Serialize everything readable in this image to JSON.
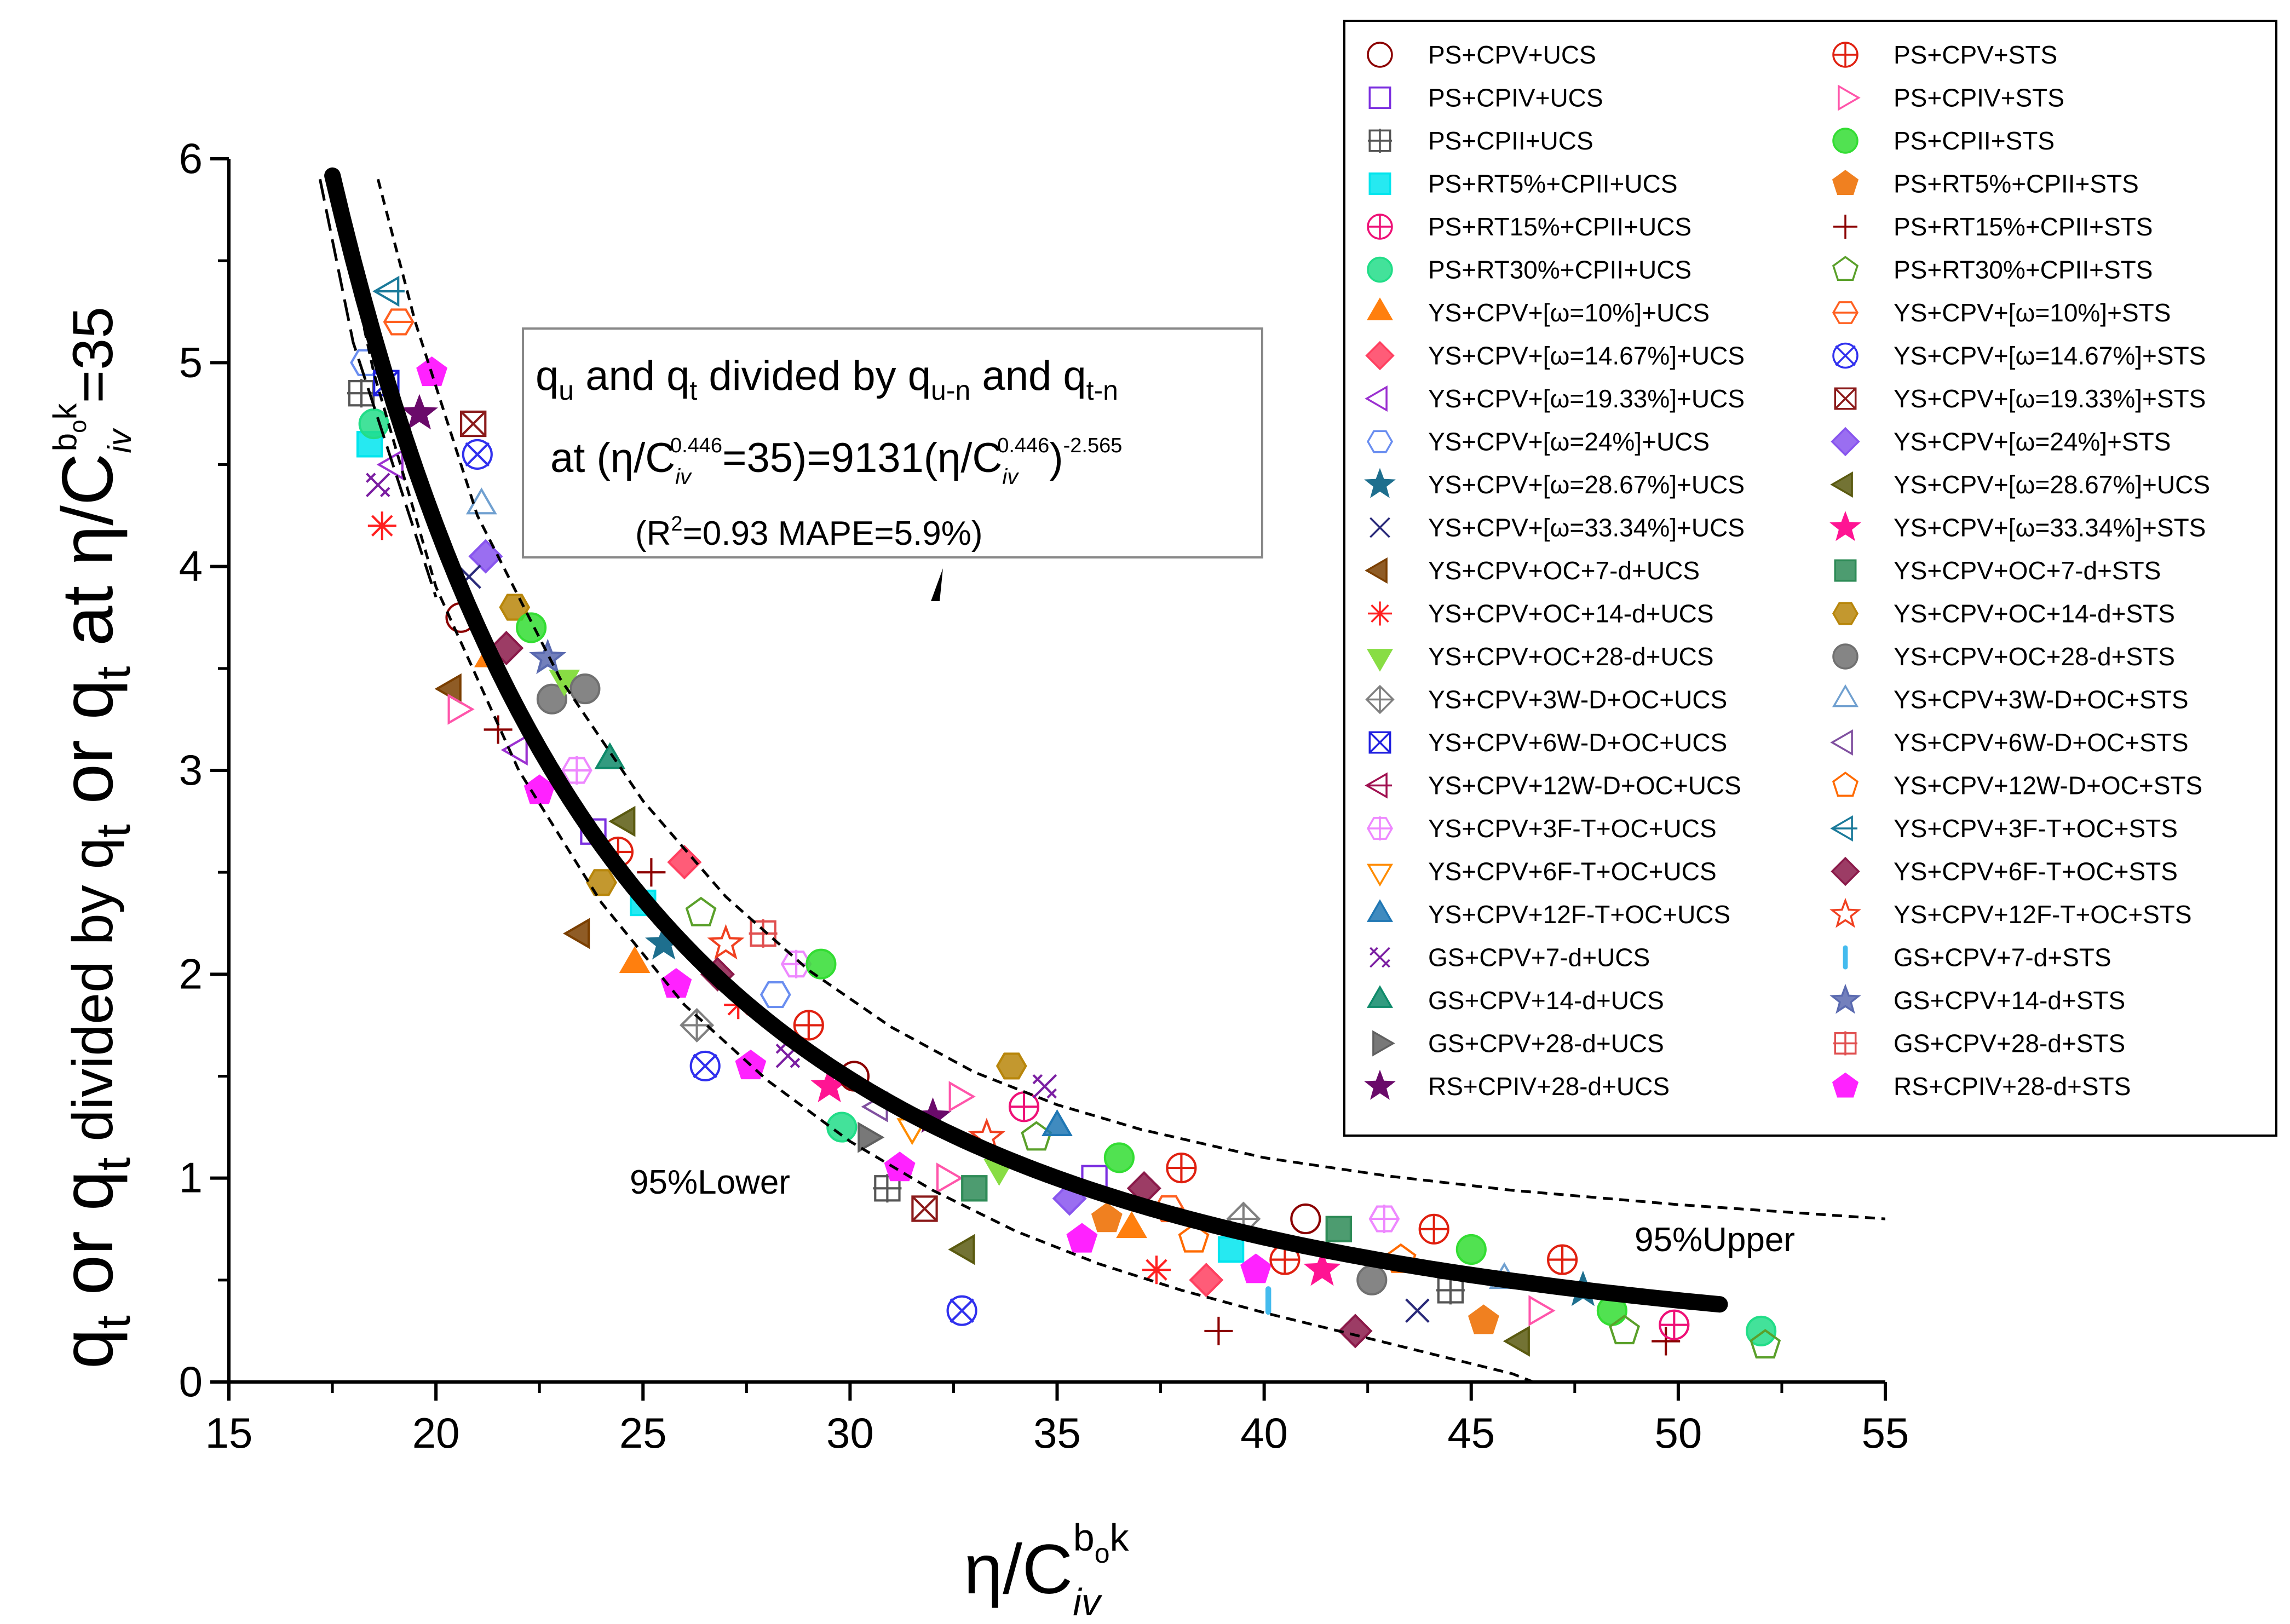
{
  "chart_data": {
    "type": "scatter",
    "xlabel": {
      "base": "η/C",
      "sub": "iv",
      "sup": "b",
      "sup_sub": "o",
      "sup2": "k"
    },
    "ylabel": {
      "p1": "q",
      "p1s": "t",
      "p2": " or q",
      "p2s": "t",
      "p3": " divided by q",
      "p3s": "t",
      "p4": " or q",
      "p4s": "t",
      "p5": " at η/C",
      "p5sub": "iv",
      "p5sup": "b",
      "p5supsub": "o",
      "p5sup2": "k",
      "p6": "=35"
    },
    "xlim": [
      15,
      55
    ],
    "ylim": [
      0,
      6
    ],
    "xticks": [
      "15",
      "20",
      "25",
      "30",
      "35",
      "40",
      "45",
      "50",
      "55"
    ],
    "yticks": [
      "0",
      "1",
      "2",
      "3",
      "4",
      "5",
      "6"
    ],
    "fit": {
      "coef": 9131,
      "exponent": -2.565,
      "line1": {
        "a": "q",
        "as": "u",
        "b": " and q",
        "bs": "t",
        "c": " divided by q",
        "cs": "u-n",
        "d": " and q",
        "ds": "t-n"
      },
      "line2": {
        "a": "at (η/C",
        "asub": "iv",
        "asup": "0.446",
        "b": "=35)=9131(η/C",
        "bsub": "iv",
        "bsup": "0.446",
        "c": ")",
        "csup": "-2.565"
      },
      "line3": {
        "a": "(R",
        "asup": "2",
        "b": "=0.93 MAPE=5.9%)"
      },
      "x_start": 17.5,
      "x_end": 51.2
    },
    "bands": {
      "lower_label": "95%Lower",
      "upper_label": "95%Upper",
      "lower": [
        [
          17.6,
          5.8
        ],
        [
          18.5,
          4.95
        ],
        [
          20.0,
          3.9
        ],
        [
          22.0,
          3.0
        ],
        [
          24.0,
          2.35
        ],
        [
          26.0,
          1.85
        ],
        [
          28.0,
          1.48
        ],
        [
          30.0,
          1.18
        ],
        [
          32.0,
          0.94
        ],
        [
          34.0,
          0.74
        ],
        [
          36.0,
          0.58
        ],
        [
          38.0,
          0.45
        ],
        [
          40.0,
          0.34
        ],
        [
          42.0,
          0.24
        ],
        [
          44.0,
          0.14
        ],
        [
          46.0,
          0.04
        ],
        [
          46.5,
          0.0
        ]
      ],
      "upper": [
        [
          18.6,
          5.9
        ],
        [
          19.5,
          5.2
        ],
        [
          21.0,
          4.25
        ],
        [
          23.0,
          3.45
        ],
        [
          25.0,
          2.85
        ],
        [
          27.0,
          2.38
        ],
        [
          29.0,
          2.02
        ],
        [
          31.0,
          1.74
        ],
        [
          33.0,
          1.52
        ],
        [
          35.0,
          1.36
        ],
        [
          37.0,
          1.24
        ],
        [
          40.0,
          1.1
        ],
        [
          43.0,
          1.01
        ],
        [
          46.0,
          0.94
        ],
        [
          50.0,
          0.87
        ],
        [
          55.0,
          0.8
        ]
      ],
      "lower2": [
        [
          17.2,
          5.9
        ],
        [
          18.0,
          5.1
        ],
        [
          20.0,
          3.85
        ]
      ]
    },
    "series": [
      {
        "name": "PS+CPV+UCS",
        "marker": "circle",
        "color": "#8b0000",
        "fill": "none"
      },
      {
        "name": "PS+CPIV+UCS",
        "marker": "square",
        "color": "#7b2fe0",
        "fill": "none"
      },
      {
        "name": "PS+CPII+UCS",
        "marker": "square-grid",
        "color": "#555555",
        "fill": "none"
      },
      {
        "name": "PS+RT5%+CPII+UCS",
        "marker": "square-half",
        "color": "#00e5ee",
        "fill": "half"
      },
      {
        "name": "PS+RT15%+CPII+UCS",
        "marker": "circle-plus",
        "color": "#ee1177",
        "fill": "none"
      },
      {
        "name": "PS+RT30%+CPII+UCS",
        "marker": "circle-half",
        "color": "#22dd88",
        "fill": "half"
      },
      {
        "name": "YS+CPV+[ω=10%]+UCS",
        "marker": "triangle-up",
        "color": "#ff7f0e",
        "fill": "solid"
      },
      {
        "name": "YS+CPV+[ω=14.67%]+UCS",
        "marker": "diamond",
        "color": "#ff4060",
        "fill": "half"
      },
      {
        "name": "YS+CPV+[ω=19.33%]+UCS",
        "marker": "triangle-left",
        "color": "#9b30d0",
        "fill": "none"
      },
      {
        "name": "YS+CPV+[ω=24%]+UCS",
        "marker": "hexagon",
        "color": "#6a8ef0",
        "fill": "none"
      },
      {
        "name": "YS+CPV+[ω=28.67%]+UCS",
        "marker": "star",
        "color": "#1e6f8e",
        "fill": "solid"
      },
      {
        "name": "YS+CPV+[ω=33.34%]+UCS",
        "marker": "x",
        "color": "#2a2a7a",
        "fill": "none"
      },
      {
        "name": "YS+CPV+OC+7-d+UCS",
        "marker": "triangle-left",
        "color": "#7b3f00",
        "fill": "half"
      },
      {
        "name": "YS+CPV+OC+14-d+UCS",
        "marker": "asterisk",
        "color": "#ff2020",
        "fill": "none"
      },
      {
        "name": "YS+CPV+OC+28-d+UCS",
        "marker": "triangle-down",
        "color": "#88dd44",
        "fill": "solid"
      },
      {
        "name": "YS+CPV+3W-D+OC+UCS",
        "marker": "diamond-plus",
        "color": "#808080",
        "fill": "none"
      },
      {
        "name": "YS+CPV+6W-D+OC+UCS",
        "marker": "square-x",
        "color": "#2020e0",
        "fill": "none"
      },
      {
        "name": "YS+CPV+12W-D+OC+UCS",
        "marker": "triangle-left-bar",
        "color": "#a01050",
        "fill": "none"
      },
      {
        "name": "YS+CPV+3F-T+OC+UCS",
        "marker": "hexagon-plus",
        "color": "#ee88ff",
        "fill": "none"
      },
      {
        "name": "YS+CPV+6F-T+OC+UCS",
        "marker": "triangle-down",
        "color": "#ff8c00",
        "fill": "none"
      },
      {
        "name": "YS+CPV+12F-T+OC+UCS",
        "marker": "triangle-up",
        "color": "#1f77b4",
        "fill": "half"
      },
      {
        "name": "GS+CPV+7-d+UCS",
        "marker": "x-double",
        "color": "#7b1fa2",
        "fill": "none"
      },
      {
        "name": "GS+CPV+14-d+UCS",
        "marker": "triangle-up",
        "color": "#0f8a6a",
        "fill": "half"
      },
      {
        "name": "GS+CPV+28-d+UCS",
        "marker": "triangle-right",
        "color": "#606060",
        "fill": "half"
      },
      {
        "name": "RS+CPIV+28-d+UCS",
        "marker": "star",
        "color": "#6a0a6a",
        "fill": "solid"
      },
      {
        "name": "PS+CPV+STS",
        "marker": "circle-plus",
        "color": "#e02010",
        "fill": "none"
      },
      {
        "name": "PS+CPIV+STS",
        "marker": "triangle-right",
        "color": "#ff55aa",
        "fill": "none"
      },
      {
        "name": "PS+CPII+STS",
        "marker": "circle-half",
        "color": "#33dd33",
        "fill": "half"
      },
      {
        "name": "PS+RT5%+CPII+STS",
        "marker": "pentagon",
        "color": "#f08020",
        "fill": "solid"
      },
      {
        "name": "PS+RT15%+CPII+STS",
        "marker": "plus",
        "color": "#8b0000",
        "fill": "none"
      },
      {
        "name": "PS+RT30%+CPII+STS",
        "marker": "pentagon",
        "color": "#5aa02a",
        "fill": "none"
      },
      {
        "name": "YS+CPV+[ω=10%]+STS",
        "marker": "hexagon-bar",
        "color": "#ff6020",
        "fill": "none"
      },
      {
        "name": "YS+CPV+[ω=14.67%]+STS",
        "marker": "circle-x",
        "color": "#3030ee",
        "fill": "none"
      },
      {
        "name": "YS+CPV+[ω=19.33%]+STS",
        "marker": "square-x",
        "color": "#8b1a1a",
        "fill": "none"
      },
      {
        "name": "YS+CPV+[ω=24%]+STS",
        "marker": "diamond",
        "color": "#8855ee",
        "fill": "half"
      },
      {
        "name": "YS+CPV+[ω=28.67%]+UCS",
        "marker": "triangle-left",
        "color": "#5a5a10",
        "fill": "half"
      },
      {
        "name": "YS+CPV+[ω=33.34%]+STS",
        "marker": "star",
        "color": "#ff1493",
        "fill": "solid"
      },
      {
        "name": "YS+CPV+OC+7-d+STS",
        "marker": "square-half",
        "color": "#2e8b57",
        "fill": "half"
      },
      {
        "name": "YS+CPV+OC+14-d+STS",
        "marker": "hexagon",
        "color": "#b8860b",
        "fill": "half"
      },
      {
        "name": "YS+CPV+OC+28-d+STS",
        "marker": "circle-half",
        "color": "#707070",
        "fill": "half"
      },
      {
        "name": "YS+CPV+3W-D+OC+STS",
        "marker": "triangle-up",
        "color": "#70a0d0",
        "fill": "none"
      },
      {
        "name": "YS+CPV+6W-D+OC+STS",
        "marker": "triangle-left",
        "color": "#8050a0",
        "fill": "none"
      },
      {
        "name": "YS+CPV+12W-D+OC+STS",
        "marker": "pentagon",
        "color": "#ff6a00",
        "fill": "none"
      },
      {
        "name": "YS+CPV+3F-T+OC+STS",
        "marker": "triangle-left-bar",
        "color": "#1a7a9a",
        "fill": "none"
      },
      {
        "name": "YS+CPV+6F-T+OC+STS",
        "marker": "diamond",
        "color": "#8b1a4a",
        "fill": "half"
      },
      {
        "name": "YS+CPV+12F-T+OC+STS",
        "marker": "star-open",
        "color": "#f04020",
        "fill": "none"
      },
      {
        "name": "GS+CPV+7-d+STS",
        "marker": "bar",
        "color": "#44bbee",
        "fill": "solid"
      },
      {
        "name": "GS+CPV+14-d+STS",
        "marker": "star",
        "color": "#5a6ab0",
        "fill": "half"
      },
      {
        "name": "GS+CPV+28-d+STS",
        "marker": "square-grid",
        "color": "#e05050",
        "fill": "none"
      },
      {
        "name": "RS+CPIV+28-d+STS",
        "marker": "pentagon",
        "color": "#ff22ff",
        "fill": "solid"
      }
    ],
    "points": [
      [
        18.2,
        4.85,
        2
      ],
      [
        18.4,
        4.6,
        3
      ],
      [
        18.7,
        4.2,
        13
      ],
      [
        18.5,
        4.7,
        5
      ],
      [
        18.3,
        5.0,
        9
      ],
      [
        18.6,
        4.4,
        21
      ],
      [
        19.1,
        5.2,
        31
      ],
      [
        18.9,
        5.35,
        43
      ],
      [
        19.6,
        4.75,
        24
      ],
      [
        19.9,
        4.95,
        49
      ],
      [
        19.0,
        4.5,
        8
      ],
      [
        18.8,
        4.9,
        16
      ],
      [
        20.9,
        4.7,
        33
      ],
      [
        21.0,
        4.55,
        32
      ],
      [
        21.1,
        4.3,
        40
      ],
      [
        21.2,
        4.05,
        34
      ],
      [
        20.6,
        3.75,
        0
      ],
      [
        21.3,
        3.55,
        6
      ],
      [
        20.4,
        3.4,
        12
      ],
      [
        21.5,
        3.2,
        29
      ],
      [
        20.8,
        3.95,
        11
      ],
      [
        21.7,
        3.6,
        44
      ],
      [
        20.5,
        3.3,
        26
      ],
      [
        21.9,
        3.8,
        38
      ],
      [
        22.3,
        3.7,
        27
      ],
      [
        22.8,
        3.35,
        39
      ],
      [
        22.0,
        3.1,
        8
      ],
      [
        22.5,
        2.9,
        49
      ],
      [
        23.1,
        3.45,
        14
      ],
      [
        23.4,
        3.0,
        18
      ],
      [
        23.8,
        2.7,
        1
      ],
      [
        22.7,
        3.55,
        47
      ],
      [
        23.6,
        3.4,
        39
      ],
      [
        24.2,
        3.05,
        22
      ],
      [
        24.6,
        2.75,
        35
      ],
      [
        24.0,
        2.45,
        38
      ],
      [
        23.5,
        2.2,
        12
      ],
      [
        24.4,
        2.6,
        25
      ],
      [
        25.0,
        2.35,
        3
      ],
      [
        25.5,
        2.15,
        10
      ],
      [
        25.8,
        1.95,
        49
      ],
      [
        24.8,
        2.05,
        6
      ],
      [
        25.2,
        2.5,
        29
      ],
      [
        26.0,
        2.55,
        7
      ],
      [
        26.4,
        2.3,
        30
      ],
      [
        26.8,
        2.0,
        44
      ],
      [
        26.3,
        1.75,
        15
      ],
      [
        26.5,
        1.55,
        32
      ],
      [
        27.0,
        2.15,
        45
      ],
      [
        27.3,
        1.85,
        13
      ],
      [
        27.6,
        1.55,
        49
      ],
      [
        27.9,
        2.2,
        48
      ],
      [
        28.2,
        1.9,
        9
      ],
      [
        28.5,
        1.6,
        21
      ],
      [
        28.7,
        2.05,
        18
      ],
      [
        29.0,
        1.75,
        25
      ],
      [
        29.3,
        2.05,
        27
      ],
      [
        29.5,
        1.45,
        36
      ],
      [
        29.8,
        1.25,
        5
      ],
      [
        30.1,
        1.5,
        0
      ],
      [
        30.4,
        1.2,
        23
      ],
      [
        30.7,
        1.35,
        41
      ],
      [
        30.9,
        0.95,
        2
      ],
      [
        31.2,
        1.05,
        49
      ],
      [
        31.5,
        1.25,
        19
      ],
      [
        31.8,
        0.85,
        33
      ],
      [
        32.0,
        1.3,
        24
      ],
      [
        32.3,
        1.0,
        26
      ],
      [
        32.6,
        1.4,
        26
      ],
      [
        32.8,
        0.65,
        35
      ],
      [
        32.7,
        0.35,
        32
      ],
      [
        33.0,
        0.95,
        37
      ],
      [
        33.3,
        1.2,
        45
      ],
      [
        33.6,
        1.05,
        14
      ],
      [
        33.9,
        1.55,
        38
      ],
      [
        34.2,
        1.35,
        4
      ],
      [
        34.5,
        1.2,
        30
      ],
      [
        34.7,
        1.45,
        21
      ],
      [
        35.0,
        1.25,
        20
      ],
      [
        35.3,
        0.9,
        34
      ],
      [
        35.6,
        0.7,
        49
      ],
      [
        35.9,
        1.0,
        1
      ],
      [
        36.2,
        0.8,
        28
      ],
      [
        36.5,
        1.1,
        27
      ],
      [
        36.8,
        0.75,
        6
      ],
      [
        37.1,
        0.95,
        44
      ],
      [
        37.4,
        0.55,
        13
      ],
      [
        37.7,
        0.85,
        31
      ],
      [
        38.0,
        1.05,
        25
      ],
      [
        38.3,
        0.7,
        42
      ],
      [
        38.6,
        0.5,
        7
      ],
      [
        38.9,
        0.25,
        29
      ],
      [
        39.2,
        0.65,
        3
      ],
      [
        39.5,
        0.8,
        15
      ],
      [
        39.8,
        0.55,
        49
      ],
      [
        40.1,
        0.4,
        46
      ],
      [
        40.5,
        0.6,
        25
      ],
      [
        41.0,
        0.8,
        0
      ],
      [
        41.4,
        0.55,
        36
      ],
      [
        41.8,
        0.75,
        37
      ],
      [
        42.2,
        0.25,
        44
      ],
      [
        42.6,
        0.5,
        39
      ],
      [
        42.9,
        0.8,
        18
      ],
      [
        43.3,
        0.6,
        42
      ],
      [
        43.7,
        0.35,
        11
      ],
      [
        44.1,
        0.75,
        25
      ],
      [
        44.5,
        0.45,
        2
      ],
      [
        45.0,
        0.65,
        27
      ],
      [
        45.3,
        0.3,
        28
      ],
      [
        45.8,
        0.5,
        40
      ],
      [
        46.2,
        0.2,
        35
      ],
      [
        46.6,
        0.35,
        26
      ],
      [
        47.2,
        0.6,
        25
      ],
      [
        47.7,
        0.45,
        10
      ],
      [
        48.4,
        0.35,
        27
      ],
      [
        48.7,
        0.25,
        30
      ],
      [
        49.7,
        0.2,
        29
      ],
      [
        49.9,
        0.28,
        4
      ],
      [
        52.0,
        0.25,
        5
      ],
      [
        52.1,
        0.18,
        30
      ]
    ]
  }
}
